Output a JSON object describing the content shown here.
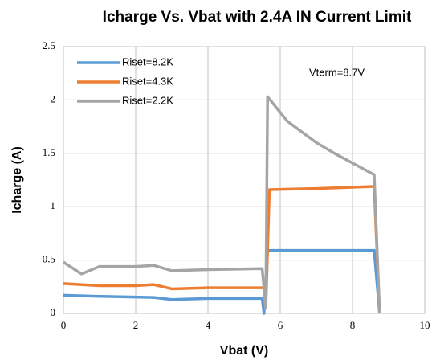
{
  "chart_data": {
    "type": "line",
    "title": "Icharge Vs. Vbat with 2.4A IN Current Limit",
    "xlabel": "Vbat (V)",
    "ylabel": "Icharge (A)",
    "annotation": "Vterm=8.7V",
    "xlim": [
      0,
      10
    ],
    "xticks": [
      0,
      2,
      4,
      6,
      8,
      10
    ],
    "ylim": [
      0,
      2.5
    ],
    "yticks": [
      0,
      0.5,
      1,
      1.5,
      2,
      2.5
    ],
    "grid": true,
    "legend": "upper left",
    "series": [
      {
        "name": "Riset=8.2K",
        "color": "#5b9bd5",
        "x": [
          0,
          1,
          2.5,
          3,
          4,
          5.5,
          5.55,
          5.65,
          7,
          8.6,
          8.75
        ],
        "values": [
          0.17,
          0.16,
          0.15,
          0.13,
          0.14,
          0.14,
          0,
          0.59,
          0.59,
          0.59,
          0
        ]
      },
      {
        "name": "Riset=4.3K",
        "color": "#ed7d31",
        "x": [
          0,
          1,
          2,
          2.5,
          3,
          4,
          5.55,
          5.6,
          5.7,
          7,
          8.6,
          8.75
        ],
        "values": [
          0.28,
          0.26,
          0.26,
          0.27,
          0.23,
          0.24,
          0.24,
          0.05,
          1.16,
          1.17,
          1.19,
          0
        ]
      },
      {
        "name": "Riset=2.2K",
        "color": "#a5a5a5",
        "x": [
          0,
          0.5,
          1,
          2,
          2.5,
          3,
          4,
          5.5,
          5.6,
          5.65,
          6.2,
          7,
          7.5,
          8.6,
          8.75
        ],
        "values": [
          0.48,
          0.37,
          0.44,
          0.44,
          0.45,
          0.4,
          0.41,
          0.42,
          0.05,
          2.03,
          1.8,
          1.6,
          1.5,
          1.3,
          0
        ]
      }
    ]
  }
}
